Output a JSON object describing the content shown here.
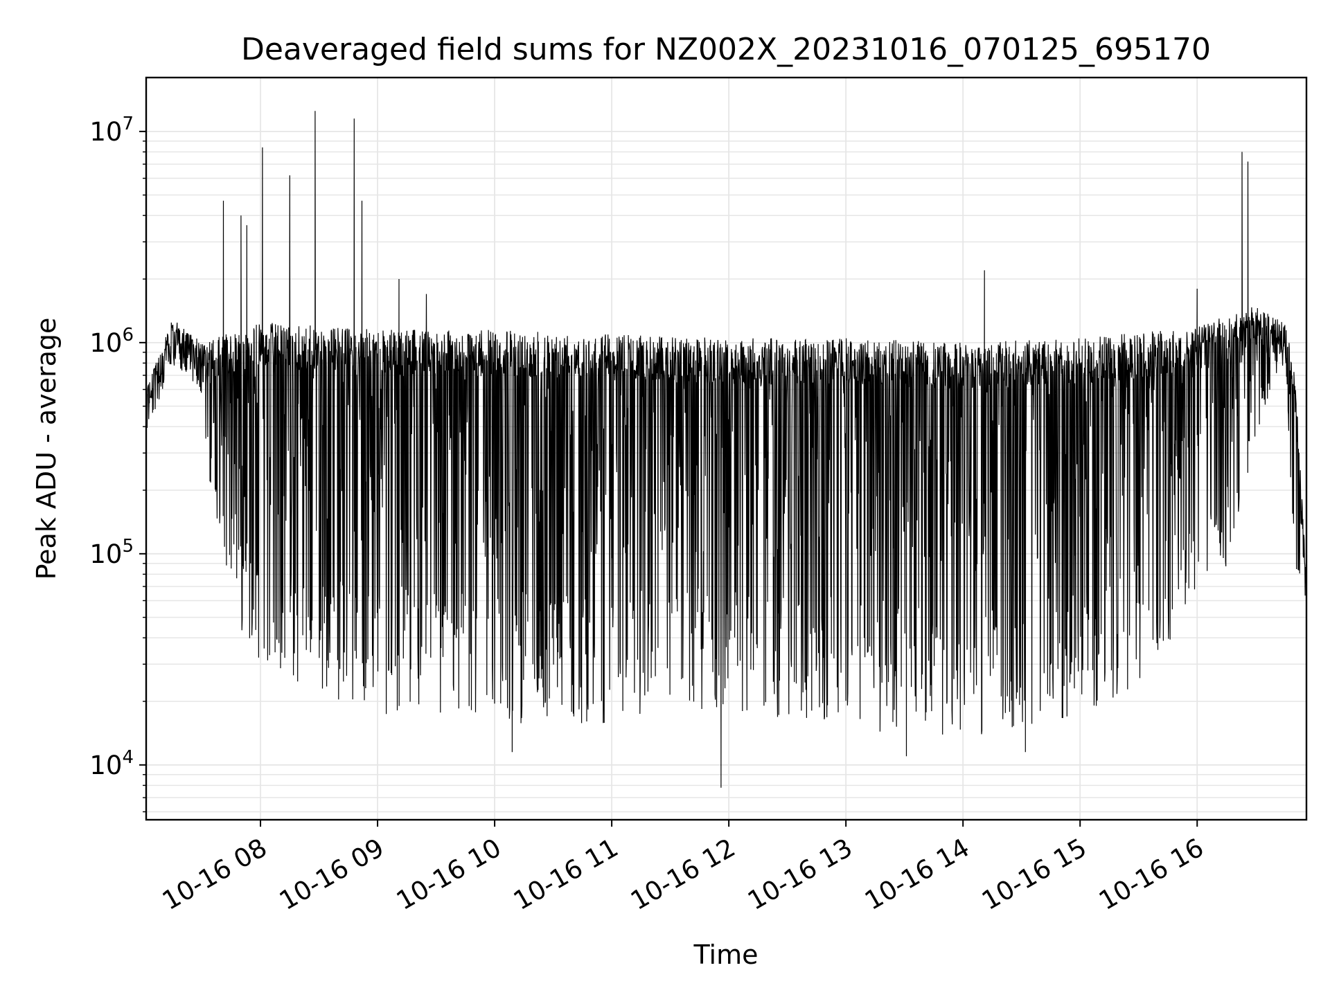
{
  "chart_data": {
    "type": "line",
    "title": "Deaveraged field sums for NZ002X_20231016_070125_695170",
    "xlabel": "Time",
    "ylabel": "Peak ADU - average",
    "y_scale": "log",
    "ylim": [
      5500,
      18000000
    ],
    "xlim": [
      "2023-10-16 07:01:25",
      "2023-10-16 16:56:00"
    ],
    "x_ticks": [
      {
        "value": "2023-10-16 08:00",
        "label": "10-16 08"
      },
      {
        "value": "2023-10-16 09:00",
        "label": "10-16 09"
      },
      {
        "value": "2023-10-16 10:00",
        "label": "10-16 10"
      },
      {
        "value": "2023-10-16 11:00",
        "label": "10-16 11"
      },
      {
        "value": "2023-10-16 12:00",
        "label": "10-16 12"
      },
      {
        "value": "2023-10-16 13:00",
        "label": "10-16 13"
      },
      {
        "value": "2023-10-16 14:00",
        "label": "10-16 14"
      },
      {
        "value": "2023-10-16 15:00",
        "label": "10-16 15"
      },
      {
        "value": "2023-10-16 16:00",
        "label": "10-16 16"
      }
    ],
    "y_ticks": [
      {
        "value": 10000,
        "base": "10",
        "exp": "4"
      },
      {
        "value": 100000,
        "base": "10",
        "exp": "5"
      },
      {
        "value": 1000000,
        "base": "10",
        "exp": "6"
      },
      {
        "value": 10000000,
        "base": "10",
        "exp": "7"
      }
    ],
    "grid": true,
    "line_color": "#000000",
    "grid_color": "#e6e6e6",
    "series": [
      {
        "values_description_points": [
          [
            "2023-10-16 07:01:25",
            500000
          ],
          [
            "2023-10-16 07:05",
            700000
          ],
          [
            "2023-10-16 07:15",
            950000
          ],
          [
            "2023-10-16 07:25",
            900000
          ],
          [
            "2023-10-16 07:30",
            600000
          ],
          [
            "2023-10-16 07:35",
            200000
          ],
          [
            "2023-10-16 07:50",
            50000
          ],
          [
            "2023-10-16 08:10",
            25000
          ],
          [
            "2023-10-16 08:30",
            25000
          ],
          [
            "2023-10-16 09:00",
            20000
          ],
          [
            "2023-10-16 10:00",
            18000
          ],
          [
            "2023-10-16 11:00",
            18000
          ],
          [
            "2023-10-16 12:00",
            20000
          ],
          [
            "2023-10-16 13:00",
            17000
          ],
          [
            "2023-10-16 14:00",
            15000
          ],
          [
            "2023-10-16 15:00",
            18000
          ],
          [
            "2023-10-16 15:30",
            28000
          ],
          [
            "2023-10-16 16:15",
            100000
          ],
          [
            "2023-10-16 16:30",
            400000
          ],
          [
            "2023-10-16 16:45",
            1100000
          ],
          [
            "2023-10-16 16:50",
            80000
          ],
          [
            "2023-10-16 16:56",
            70000
          ]
        ],
        "upper_envelope": [
          [
            "2023-10-16 07:01:25",
            600000
          ],
          [
            "2023-10-16 07:15",
            1300000
          ],
          [
            "2023-10-16 07:30",
            1000000
          ],
          [
            "2023-10-16 08:00",
            1250000
          ],
          [
            "2023-10-16 09:00",
            1150000
          ],
          [
            "2023-10-16 10:00",
            1150000
          ],
          [
            "2023-10-16 11:00",
            1100000
          ],
          [
            "2023-10-16 12:00",
            1050000
          ],
          [
            "2023-10-16 13:00",
            1050000
          ],
          [
            "2023-10-16 14:00",
            1000000
          ],
          [
            "2023-10-16 15:00",
            1050000
          ],
          [
            "2023-10-16 16:00",
            1200000
          ],
          [
            "2023-10-16 16:30",
            1500000
          ],
          [
            "2023-10-16 16:45",
            1250000
          ],
          [
            "2023-10-16 16:50",
            750000
          ],
          [
            "2023-10-16 16:56",
            80000
          ]
        ],
        "spikes": [
          [
            "2023-10-16 07:41",
            4700000
          ],
          [
            "2023-10-16 07:50",
            4000000
          ],
          [
            "2023-10-16 07:53",
            3600000
          ],
          [
            "2023-10-16 08:01",
            8400000
          ],
          [
            "2023-10-16 08:15",
            6200000
          ],
          [
            "2023-10-16 08:28",
            12500000
          ],
          [
            "2023-10-16 08:48",
            11500000
          ],
          [
            "2023-10-16 08:52",
            4700000
          ],
          [
            "2023-10-16 09:11",
            2000000
          ],
          [
            "2023-10-16 09:25",
            1700000
          ],
          [
            "2023-10-16 14:11",
            2200000
          ],
          [
            "2023-10-16 16:00",
            1800000
          ],
          [
            "2023-10-16 16:23",
            8000000
          ],
          [
            "2023-10-16 16:26",
            7200000
          ]
        ],
        "dips": [
          [
            "2023-10-16 10:09",
            11500
          ],
          [
            "2023-10-16 11:56",
            7800
          ],
          [
            "2023-10-16 13:31",
            11000
          ],
          [
            "2023-10-16 14:32",
            11500
          ]
        ]
      }
    ]
  }
}
